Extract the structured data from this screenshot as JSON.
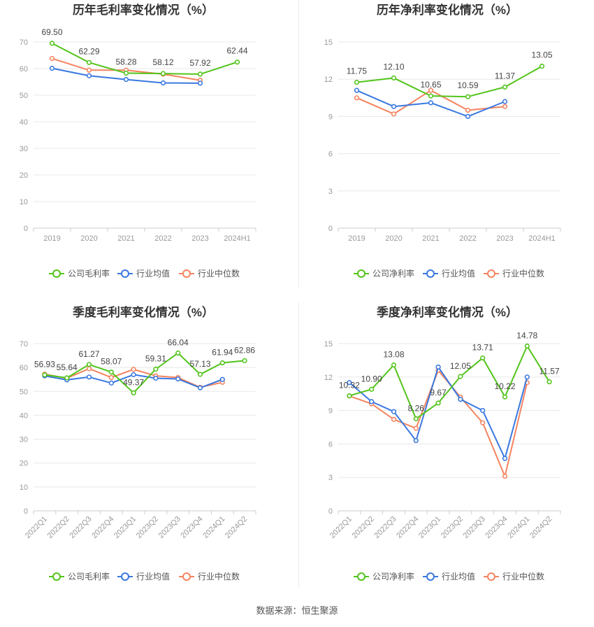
{
  "colors": {
    "company": "#52c41a",
    "industry_avg": "#3a78e0",
    "industry_median": "#f4845f",
    "grid": "#e8e8e8",
    "axis_text": "#999999",
    "title": "#333333"
  },
  "legend_labels_gross": [
    "公司毛利率",
    "行业均值",
    "行业中位数"
  ],
  "legend_labels_net": [
    "公司净利率",
    "行业均值",
    "行业中位数"
  ],
  "source": "数据来源：恒生聚源",
  "chart_data": [
    {
      "type": "line",
      "title": "历年毛利率变化情况（%）",
      "categories": [
        "2019",
        "2020",
        "2021",
        "2022",
        "2023",
        "2024H1"
      ],
      "ylim": [
        0,
        70
      ],
      "yticks": [
        0,
        10,
        20,
        30,
        40,
        50,
        60,
        70
      ],
      "grid": true,
      "legend": "bottom",
      "series": [
        {
          "name": "公司毛利率",
          "values": [
            69.5,
            62.29,
            58.28,
            58.12,
            57.92,
            62.44
          ],
          "labels": [
            "69.50",
            "62.29",
            "58.28",
            "58.12",
            "57.92",
            "62.44"
          ]
        },
        {
          "name": "行业均值",
          "values": [
            60.1,
            57.3,
            55.9,
            54.6,
            54.5,
            null
          ]
        },
        {
          "name": "行业中位数",
          "values": [
            63.8,
            59.4,
            59.4,
            57.9,
            55.6,
            null
          ]
        }
      ]
    },
    {
      "type": "line",
      "title": "历年净利率变化情况（%）",
      "categories": [
        "2019",
        "2020",
        "2021",
        "2022",
        "2023",
        "2024H1"
      ],
      "ylim": [
        0,
        15
      ],
      "yticks": [
        0,
        3,
        6,
        9,
        12,
        15
      ],
      "grid": true,
      "legend": "bottom",
      "series": [
        {
          "name": "公司净利率",
          "values": [
            11.75,
            12.1,
            10.65,
            10.59,
            11.37,
            13.05
          ],
          "labels": [
            "11.75",
            "12.10",
            "10.65",
            "10.59",
            "11.37",
            "13.05"
          ]
        },
        {
          "name": "行业均值",
          "values": [
            11.1,
            9.8,
            10.1,
            9.0,
            10.2,
            null
          ]
        },
        {
          "name": "行业中位数",
          "values": [
            10.5,
            9.2,
            11.1,
            9.5,
            9.8,
            null
          ]
        }
      ]
    },
    {
      "type": "line",
      "title": "季度毛利率变化情况（%）",
      "categories": [
        "2022Q1",
        "2022Q2",
        "2022Q3",
        "2022Q4",
        "2023Q1",
        "2023Q2",
        "2023Q3",
        "2023Q4",
        "2024Q1",
        "2024Q2"
      ],
      "ylim": [
        0,
        70
      ],
      "yticks": [
        0,
        10,
        20,
        30,
        40,
        50,
        60,
        70
      ],
      "grid": true,
      "legend": "bottom",
      "series": [
        {
          "name": "公司毛利率",
          "values": [
            56.93,
            55.64,
            61.27,
            58.07,
            49.37,
            59.31,
            66.04,
            57.13,
            61.94,
            62.86
          ],
          "labels": [
            "56.93",
            "55.64",
            "61.27",
            "58.07",
            "49.37",
            "59.31",
            "66.04",
            "57.13",
            "61.94",
            "62.86"
          ]
        },
        {
          "name": "行业均值",
          "values": [
            56.5,
            54.8,
            56.0,
            53.5,
            57.0,
            55.5,
            55.2,
            51.5,
            55.0,
            null
          ]
        },
        {
          "name": "行业中位数",
          "values": [
            57.2,
            55.5,
            59.5,
            55.8,
            59.2,
            56.5,
            55.8,
            51.7,
            53.8,
            null
          ]
        }
      ]
    },
    {
      "type": "line",
      "title": "季度净利率变化情况（%）",
      "categories": [
        "2022Q1",
        "2022Q2",
        "2022Q3",
        "2022Q4",
        "2023Q1",
        "2023Q2",
        "2023Q3",
        "2023Q4",
        "2024Q1",
        "2024Q2"
      ],
      "ylim": [
        0,
        15
      ],
      "yticks": [
        0,
        3,
        6,
        9,
        12,
        15
      ],
      "grid": true,
      "legend": "bottom",
      "series": [
        {
          "name": "公司净利率",
          "values": [
            10.32,
            10.9,
            13.08,
            8.26,
            9.67,
            12.05,
            13.71,
            10.22,
            14.78,
            11.57
          ],
          "labels": [
            "10.32",
            "10.90",
            "13.08",
            "8.26",
            "9.67",
            "12.05",
            "13.71",
            "10.22",
            "14.78",
            "11.57"
          ]
        },
        {
          "name": "行业均值",
          "values": [
            11.5,
            9.8,
            8.9,
            6.3,
            12.9,
            10.0,
            9.0,
            4.7,
            12.0,
            null
          ]
        },
        {
          "name": "行业中位数",
          "values": [
            10.3,
            9.6,
            8.2,
            7.4,
            12.6,
            10.2,
            7.9,
            3.1,
            11.5,
            null
          ]
        }
      ]
    }
  ]
}
